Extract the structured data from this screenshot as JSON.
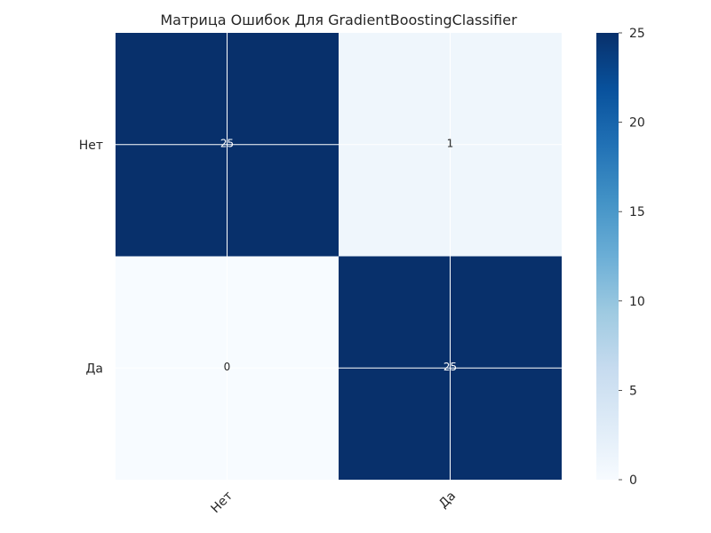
{
  "chart_data": {
    "type": "heatmap",
    "title": "Матрица Ошибок Для GradientBoostingClassifier",
    "xlabel": "",
    "ylabel": "",
    "x_categories": [
      "Нет",
      "Да"
    ],
    "y_categories": [
      "Нет",
      "Да"
    ],
    "values": [
      [
        25,
        1
      ],
      [
        0,
        25
      ]
    ],
    "colorbar": {
      "min": 0,
      "max": 25,
      "ticks": [
        "0",
        "5",
        "10",
        "15",
        "20",
        "25"
      ]
    },
    "colormap": "Blues",
    "colors": {
      "low": "#f7fbff",
      "high": "#08306b",
      "grid": "#ffffff",
      "text_dark": "#262626",
      "text_light": "#ffffff"
    },
    "grid": true
  }
}
